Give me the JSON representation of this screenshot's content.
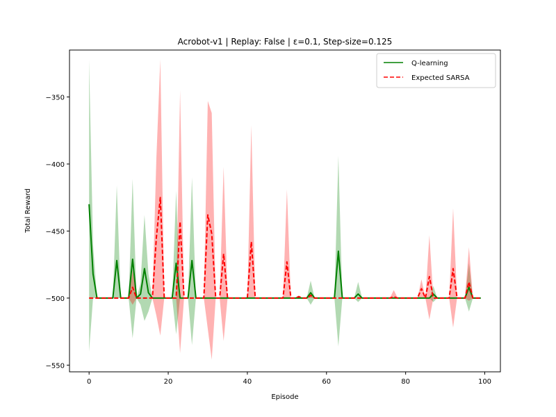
{
  "chart_data": {
    "type": "line",
    "title": "Acrobot-v1 | Replay: False | ε=0.1, Step-size=0.125",
    "xlabel": "Episode",
    "ylabel": "Total Reward",
    "xlim": [
      -4.95,
      103.95
    ],
    "ylim": [
      -555,
      -315
    ],
    "xticks": [
      0,
      20,
      40,
      60,
      80,
      100
    ],
    "xtick_labels": [
      "0",
      "20",
      "40",
      "60",
      "80",
      "100"
    ],
    "yticks": [
      -550,
      -500,
      -450,
      -400,
      -350
    ],
    "ytick_labels": [
      "−550",
      "−500",
      "−450",
      "−400",
      "−350"
    ],
    "grid": false,
    "legend_position": "top-right",
    "x": [
      0,
      1,
      2,
      3,
      4,
      5,
      6,
      7,
      8,
      9,
      10,
      11,
      12,
      13,
      14,
      15,
      16,
      17,
      18,
      19,
      20,
      21,
      22,
      23,
      24,
      25,
      26,
      27,
      28,
      29,
      30,
      31,
      32,
      33,
      34,
      35,
      36,
      37,
      38,
      39,
      40,
      41,
      42,
      43,
      44,
      45,
      46,
      47,
      48,
      49,
      50,
      51,
      52,
      53,
      54,
      55,
      56,
      57,
      58,
      59,
      60,
      61,
      62,
      63,
      64,
      65,
      66,
      67,
      68,
      69,
      70,
      71,
      72,
      73,
      74,
      75,
      76,
      77,
      78,
      79,
      80,
      81,
      82,
      83,
      84,
      85,
      86,
      87,
      88,
      89,
      90,
      91,
      92,
      93,
      94,
      95,
      96,
      97,
      98,
      99
    ],
    "series": [
      {
        "name": "Q-learning",
        "color": "#008000",
        "fill_color": "#008000",
        "linestyle": "solid",
        "values": [
          -430,
          -482,
          -500,
          -500,
          -500,
          -500,
          -500,
          -472,
          -500,
          -500,
          -500,
          -471,
          -500,
          -497,
          -478,
          -496,
          -500,
          -500,
          -500,
          -500,
          -500,
          -500,
          -474,
          -500,
          -500,
          -500,
          -472,
          -500,
          -500,
          -500,
          -500,
          -500,
          -500,
          -500,
          -500,
          -500,
          -500,
          -500,
          -500,
          -500,
          -500,
          -500,
          -500,
          -500,
          -500,
          -500,
          -500,
          -500,
          -500,
          -500,
          -500,
          -500,
          -500,
          -500,
          -500,
          -500,
          -496,
          -500,
          -500,
          -500,
          -500,
          -500,
          -500,
          -465,
          -500,
          -500,
          -500,
          -500,
          -497,
          -500,
          -500,
          -500,
          -500,
          -500,
          -500,
          -500,
          -500,
          -500,
          -500,
          -500,
          -500,
          -500,
          -500,
          -500,
          -500,
          -500,
          -500,
          -497,
          -500,
          -500,
          -500,
          -500,
          -500,
          -500,
          -500,
          -500,
          -492,
          -500,
          -500,
          -500
        ],
        "lower": [
          -540,
          -500,
          -500,
          -500,
          -500,
          -500,
          -500,
          -500,
          -500,
          -500,
          -500,
          -530,
          -500,
          -505,
          -517,
          -510,
          -500,
          -500,
          -500,
          -500,
          -500,
          -500,
          -527,
          -500,
          -500,
          -500,
          -535,
          -500,
          -500,
          -500,
          -500,
          -500,
          -500,
          -500,
          -500,
          -500,
          -500,
          -500,
          -500,
          -500,
          -500,
          -500,
          -500,
          -500,
          -500,
          -500,
          -500,
          -500,
          -500,
          -500,
          -500,
          -500,
          -500,
          -500,
          -500,
          -500,
          -505,
          -500,
          -500,
          -500,
          -500,
          -500,
          -500,
          -536,
          -500,
          -500,
          -500,
          -500,
          -503,
          -500,
          -500,
          -500,
          -500,
          -500,
          -500,
          -500,
          -500,
          -500,
          -500,
          -500,
          -500,
          -500,
          -500,
          -500,
          -500,
          -500,
          -500,
          -503,
          -500,
          -500,
          -500,
          -500,
          -500,
          -500,
          -500,
          -500,
          -510,
          -500,
          -500,
          -500
        ],
        "upper": [
          -322,
          -460,
          -500,
          -500,
          -500,
          -500,
          -500,
          -416,
          -500,
          -500,
          -500,
          -411,
          -500,
          -489,
          -438,
          -482,
          -500,
          -500,
          -500,
          -500,
          -500,
          -500,
          -420,
          -500,
          -500,
          -500,
          -410,
          -500,
          -500,
          -500,
          -500,
          -500,
          -500,
          -500,
          -500,
          -500,
          -500,
          -500,
          -500,
          -500,
          -500,
          -500,
          -500,
          -500,
          -500,
          -500,
          -500,
          -500,
          -500,
          -500,
          -500,
          -500,
          -500,
          -500,
          -500,
          -500,
          -487,
          -500,
          -500,
          -500,
          -500,
          -500,
          -500,
          -394,
          -500,
          -500,
          -500,
          -500,
          -488,
          -500,
          -500,
          -500,
          -500,
          -500,
          -500,
          -500,
          -500,
          -500,
          -500,
          -500,
          -500,
          -500,
          -500,
          -500,
          -500,
          -500,
          -500,
          -491,
          -500,
          -500,
          -500,
          -500,
          -500,
          -500,
          -500,
          -500,
          -474,
          -500,
          -500,
          -500
        ]
      },
      {
        "name": "Expected SARSA",
        "color": "#ff0000",
        "fill_color": "#ff0000",
        "linestyle": "dashed",
        "values": [
          -500,
          -500,
          -500,
          -500,
          -500,
          -500,
          -500,
          -500,
          -500,
          -500,
          -500,
          -492,
          -500,
          -500,
          -500,
          -500,
          -500,
          -455,
          -425,
          -500,
          -500,
          -500,
          -500,
          -443,
          -500,
          -500,
          -500,
          -500,
          -500,
          -500,
          -438,
          -452,
          -500,
          -500,
          -467,
          -500,
          -500,
          -500,
          -500,
          -500,
          -500,
          -458,
          -500,
          -500,
          -500,
          -500,
          -500,
          -500,
          -500,
          -500,
          -473,
          -500,
          -500,
          -499,
          -500,
          -500,
          -498,
          -500,
          -500,
          -500,
          -500,
          -500,
          -500,
          -500,
          -500,
          -500,
          -500,
          -500,
          -500,
          -500,
          -500,
          -500,
          -500,
          -500,
          -500,
          -500,
          -500,
          -499,
          -500,
          -500,
          -500,
          -500,
          -500,
          -500,
          -493,
          -500,
          -484,
          -500,
          -500,
          -500,
          -500,
          -500,
          -478,
          -500,
          -500,
          -500,
          -488,
          -500,
          -500,
          -500
        ],
        "lower": [
          -500,
          -500,
          -500,
          -500,
          -500,
          -500,
          -500,
          -500,
          -500,
          -500,
          -500,
          -505,
          -500,
          -500,
          -500,
          -500,
          -500,
          -513,
          -528,
          -500,
          -500,
          -500,
          -500,
          -541,
          -500,
          -500,
          -500,
          -500,
          -500,
          -500,
          -523,
          -546,
          -500,
          -500,
          -532,
          -500,
          -500,
          -500,
          -500,
          -500,
          -500,
          -500,
          -500,
          -500,
          -500,
          -500,
          -500,
          -500,
          -500,
          -500,
          -500,
          -500,
          -500,
          -500,
          -500,
          -500,
          -500,
          -500,
          -500,
          -500,
          -500,
          -500,
          -500,
          -500,
          -500,
          -500,
          -500,
          -500,
          -500,
          -500,
          -500,
          -500,
          -500,
          -500,
          -500,
          -500,
          -500,
          -500,
          -500,
          -500,
          -500,
          -500,
          -500,
          -500,
          -500,
          -500,
          -516,
          -500,
          -500,
          -500,
          -500,
          -500,
          -522,
          -500,
          -500,
          -500,
          -502,
          -500,
          -500,
          -500
        ],
        "upper": [
          -500,
          -500,
          -500,
          -500,
          -500,
          -500,
          -500,
          -500,
          -500,
          -500,
          -500,
          -479,
          -500,
          -500,
          -500,
          -500,
          -500,
          -396,
          -322,
          -500,
          -500,
          -500,
          -500,
          -345,
          -500,
          -500,
          -500,
          -500,
          -500,
          -500,
          -353,
          -362,
          -500,
          -500,
          -402,
          -500,
          -500,
          -500,
          -500,
          -500,
          -500,
          -371,
          -500,
          -500,
          -500,
          -500,
          -500,
          -500,
          -500,
          -500,
          -419,
          -500,
          -500,
          -498,
          -500,
          -500,
          -496,
          -500,
          -500,
          -500,
          -500,
          -500,
          -500,
          -500,
          -500,
          -500,
          -500,
          -500,
          -500,
          -500,
          -500,
          -500,
          -500,
          -500,
          -500,
          -500,
          -500,
          -494,
          -500,
          -500,
          -500,
          -500,
          -500,
          -500,
          -486,
          -500,
          -453,
          -500,
          -500,
          -500,
          -500,
          -500,
          -433,
          -500,
          -500,
          -500,
          -462,
          -500,
          -500,
          -500
        ]
      }
    ]
  }
}
